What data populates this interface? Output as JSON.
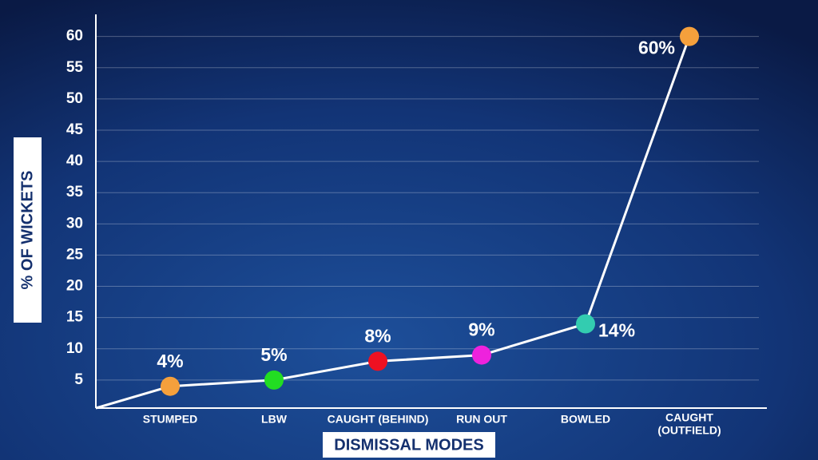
{
  "chart_data": {
    "type": "line",
    "y_label": "% OF WICKETS",
    "x_label": "DISMISSAL MODES",
    "categories": [
      "STUMPED",
      "LBW",
      "CAUGHT (BEHIND)",
      "RUN OUT",
      "BOWLED",
      [
        "CAUGHT",
        "(OUTFIELD)"
      ]
    ],
    "values": [
      4,
      5,
      8,
      9,
      14,
      60
    ],
    "value_labels": [
      "4%",
      "5%",
      "8%",
      "9%",
      "14%",
      "60%"
    ],
    "color": "#ffffff",
    "point_colors": [
      "#f5a03c",
      "#22dd22",
      "#ee1122",
      "#ee22dd",
      "#33ccb0",
      "#f5a03c"
    ],
    "ylim": [
      0,
      62
    ],
    "yticks": [
      5,
      10,
      15,
      20,
      25,
      30,
      35,
      40,
      45,
      50,
      55,
      60
    ],
    "grid": true
  }
}
